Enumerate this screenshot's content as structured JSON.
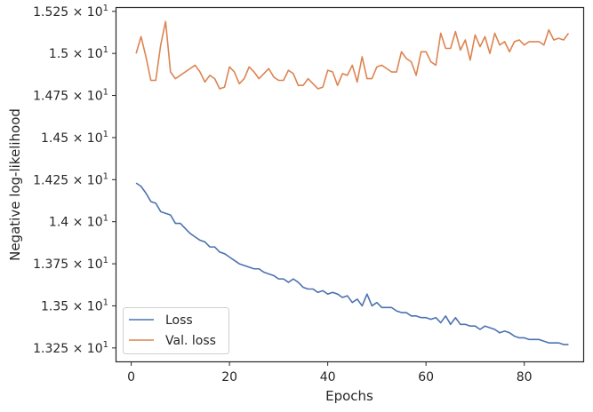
{
  "chart_data": {
    "type": "line",
    "xlabel": "Epochs",
    "ylabel": "Negative log-likelihood",
    "xlim": [
      -3,
      92
    ],
    "ylim": [
      13.17,
      15.27
    ],
    "x_ticks": [
      0,
      20,
      40,
      60,
      80
    ],
    "x_tick_labels": [
      "0",
      "20",
      "40",
      "60",
      "80"
    ],
    "y_ticks": [
      13.25,
      13.5,
      13.75,
      14.0,
      14.25,
      14.5,
      14.75,
      15.0,
      15.25
    ],
    "y_tick_labels": [
      {
        "mantissa": "1.325",
        "exp": "1"
      },
      {
        "mantissa": "1.35",
        "exp": "1"
      },
      {
        "mantissa": "1.375",
        "exp": "1"
      },
      {
        "mantissa": "1.4",
        "exp": "1"
      },
      {
        "mantissa": "1.425",
        "exp": "1"
      },
      {
        "mantissa": "1.45",
        "exp": "1"
      },
      {
        "mantissa": "1.475",
        "exp": "1"
      },
      {
        "mantissa": "1.5",
        "exp": "1"
      },
      {
        "mantissa": "1.525",
        "exp": "1"
      }
    ],
    "grid": false,
    "legend_position": "lower-left",
    "x": [
      1,
      2,
      3,
      4,
      5,
      6,
      7,
      8,
      9,
      10,
      11,
      12,
      13,
      14,
      15,
      16,
      17,
      18,
      19,
      20,
      21,
      22,
      23,
      24,
      25,
      26,
      27,
      28,
      29,
      30,
      31,
      32,
      33,
      34,
      35,
      36,
      37,
      38,
      39,
      40,
      41,
      42,
      43,
      44,
      45,
      46,
      47,
      48,
      49,
      50,
      51,
      52,
      53,
      54,
      55,
      56,
      57,
      58,
      59,
      60,
      61,
      62,
      63,
      64,
      65,
      66,
      67,
      68,
      69,
      70,
      71,
      72,
      73,
      74,
      75,
      76,
      77,
      78,
      79,
      80,
      81,
      82,
      83,
      84,
      85,
      86,
      87,
      88,
      89
    ],
    "series": [
      {
        "name": "Loss",
        "color": "#4c72b0",
        "values": [
          14.23,
          14.21,
          14.17,
          14.12,
          14.11,
          14.06,
          14.05,
          14.04,
          13.99,
          13.99,
          13.96,
          13.93,
          13.91,
          13.89,
          13.88,
          13.85,
          13.85,
          13.82,
          13.81,
          13.79,
          13.77,
          13.75,
          13.74,
          13.73,
          13.72,
          13.72,
          13.7,
          13.69,
          13.68,
          13.66,
          13.66,
          13.64,
          13.66,
          13.64,
          13.61,
          13.6,
          13.6,
          13.58,
          13.59,
          13.57,
          13.58,
          13.57,
          13.55,
          13.56,
          13.52,
          13.54,
          13.5,
          13.57,
          13.5,
          13.52,
          13.49,
          13.49,
          13.49,
          13.47,
          13.46,
          13.46,
          13.44,
          13.44,
          13.43,
          13.43,
          13.42,
          13.43,
          13.4,
          13.44,
          13.39,
          13.43,
          13.39,
          13.39,
          13.38,
          13.38,
          13.36,
          13.38,
          13.37,
          13.36,
          13.34,
          13.35,
          13.34,
          13.32,
          13.31,
          13.31,
          13.3,
          13.3,
          13.3,
          13.29,
          13.28,
          13.28,
          13.28,
          13.27,
          13.27
        ]
      },
      {
        "name": "Val. loss",
        "color": "#dd8452",
        "values": [
          15.0,
          15.1,
          14.98,
          14.84,
          14.84,
          15.05,
          15.19,
          14.89,
          14.85,
          14.87,
          14.89,
          14.91,
          14.93,
          14.89,
          14.83,
          14.87,
          14.85,
          14.79,
          14.8,
          14.92,
          14.89,
          14.82,
          14.85,
          14.92,
          14.89,
          14.85,
          14.88,
          14.91,
          14.86,
          14.84,
          14.84,
          14.9,
          14.88,
          14.81,
          14.81,
          14.85,
          14.82,
          14.79,
          14.8,
          14.9,
          14.89,
          14.81,
          14.88,
          14.87,
          14.93,
          14.83,
          14.98,
          14.85,
          14.85,
          14.92,
          14.93,
          14.91,
          14.89,
          14.89,
          15.01,
          14.97,
          14.95,
          14.87,
          15.01,
          15.01,
          14.95,
          14.93,
          15.12,
          15.03,
          15.03,
          15.13,
          15.02,
          15.08,
          14.96,
          15.11,
          15.04,
          15.1,
          15.0,
          15.12,
          15.05,
          15.07,
          15.01,
          15.07,
          15.08,
          15.05,
          15.07,
          15.07,
          15.07,
          15.05,
          15.14,
          15.08,
          15.09,
          15.08,
          15.12
        ]
      }
    ]
  }
}
